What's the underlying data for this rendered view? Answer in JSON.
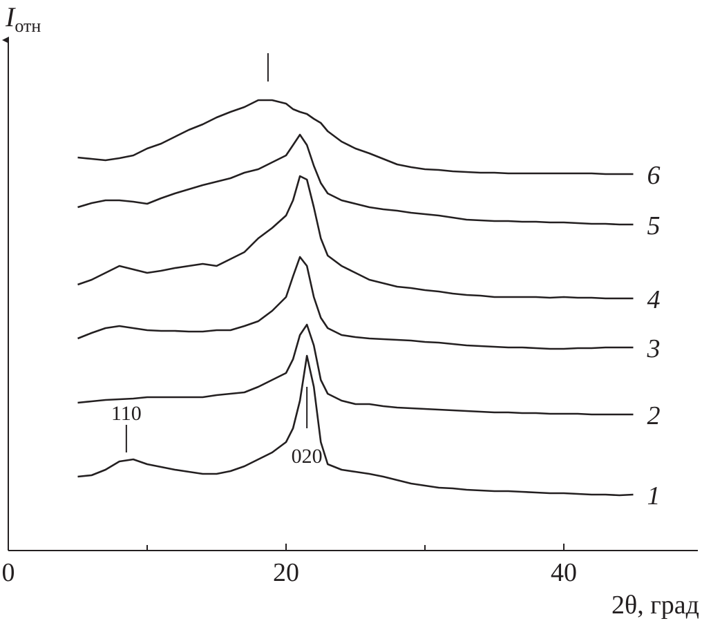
{
  "chart_data": {
    "type": "line",
    "y_label": "I",
    "y_label_subscript": "отн",
    "x_label": "2θ, град",
    "xlim": [
      0,
      49.6
    ],
    "xticks": [
      0,
      20,
      40
    ],
    "x_minor_ticks": [
      10,
      30
    ],
    "ylim": [
      0,
      737
    ],
    "x": [
      5,
      6,
      7,
      8,
      9,
      10,
      11,
      12,
      13,
      14,
      15,
      16,
      17,
      18,
      19,
      20,
      20.5,
      21,
      21.5,
      22,
      22.5,
      23,
      24,
      25,
      26,
      27,
      28,
      29,
      30,
      31,
      32,
      33,
      34,
      35,
      36,
      37,
      38,
      39,
      40,
      41,
      42,
      43,
      44,
      45
    ],
    "series": [
      {
        "name": "1",
        "color": "#231f20",
        "values": [
          107,
          109,
          117,
          129,
          132,
          125,
          121,
          117,
          114,
          111,
          111,
          115,
          122,
          132,
          142,
          157,
          177,
          217,
          282,
          237,
          157,
          125,
          117,
          114,
          111,
          107,
          102,
          97,
          94,
          91,
          90,
          88,
          87,
          86,
          86,
          85,
          84,
          83,
          83,
          82,
          81,
          81,
          80,
          81
        ]
      },
      {
        "name": "2",
        "color": "#231f20",
        "values": [
          214,
          216,
          218,
          219,
          220,
          222,
          222,
          222,
          222,
          222,
          225,
          227,
          229,
          237,
          247,
          257,
          277,
          312,
          327,
          297,
          247,
          227,
          217,
          212,
          212,
          209,
          207,
          206,
          205,
          204,
          203,
          202,
          201,
          200,
          200,
          199,
          199,
          198,
          198,
          198,
          197,
          197,
          197,
          197
        ]
      },
      {
        "name": "3",
        "color": "#231f20",
        "values": [
          307,
          315,
          322,
          325,
          322,
          319,
          318,
          318,
          317,
          317,
          319,
          319,
          325,
          332,
          347,
          367,
          397,
          425,
          412,
          367,
          337,
          322,
          312,
          309,
          307,
          306,
          305,
          304,
          302,
          301,
          299,
          297,
          296,
          295,
          294,
          294,
          293,
          292,
          292,
          293,
          293,
          294,
          294,
          294
        ]
      },
      {
        "name": "4",
        "color": "#231f20",
        "values": [
          385,
          392,
          402,
          412,
          407,
          402,
          405,
          409,
          412,
          415,
          412,
          422,
          432,
          452,
          467,
          485,
          507,
          542,
          537,
          497,
          452,
          427,
          412,
          402,
          392,
          387,
          382,
          380,
          377,
          375,
          372,
          370,
          369,
          367,
          367,
          367,
          367,
          366,
          367,
          366,
          366,
          365,
          365,
          365
        ]
      },
      {
        "name": "5",
        "color": "#231f20",
        "values": [
          497,
          503,
          507,
          507,
          505,
          502,
          510,
          517,
          523,
          529,
          534,
          539,
          547,
          552,
          562,
          572,
          587,
          602,
          587,
          557,
          532,
          517,
          507,
          502,
          497,
          494,
          492,
          489,
          487,
          485,
          482,
          479,
          478,
          477,
          477,
          476,
          476,
          475,
          475,
          474,
          473,
          473,
          472,
          472
        ]
      },
      {
        "name": "6",
        "color": "#231f20",
        "values": [
          569,
          567,
          565,
          568,
          572,
          582,
          589,
          599,
          609,
          617,
          627,
          635,
          642,
          652,
          652,
          647,
          639,
          635,
          632,
          625,
          619,
          607,
          592,
          582,
          575,
          567,
          559,
          555,
          552,
          551,
          549,
          548,
          547,
          547,
          546,
          546,
          546,
          546,
          546,
          546,
          546,
          545,
          545,
          545
        ]
      }
    ],
    "annotations": [
      {
        "text": "110",
        "x": 8.5
      },
      {
        "text": "020",
        "x": 21.5
      }
    ],
    "markers": [
      8.5,
      21.5,
      18.7
    ]
  }
}
